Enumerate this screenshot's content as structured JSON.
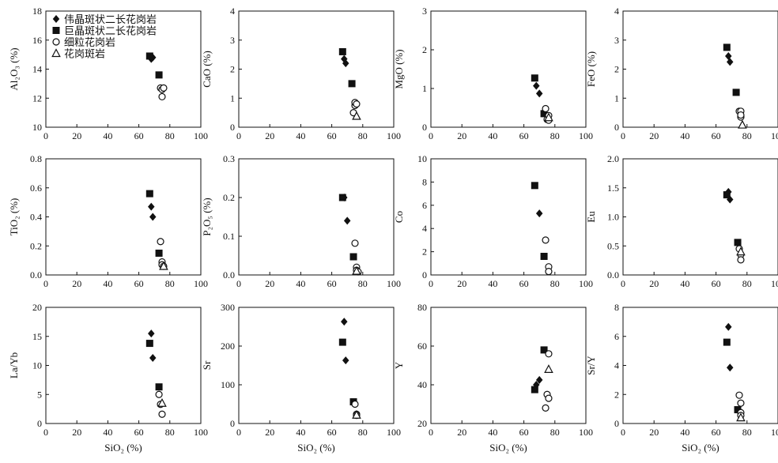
{
  "legend": [
    {
      "label": "伟晶斑状二长花岗岩",
      "marker": "diamond"
    },
    {
      "label": "巨晶斑状二长花岗岩",
      "marker": "square"
    },
    {
      "label": "细粒花岗岩",
      "marker": "circle"
    },
    {
      "label": "花岗斑岩",
      "marker": "triangle"
    }
  ],
  "marker_color": "#111111",
  "chart_data": [
    {
      "type": "scatter",
      "ylabel": "Al₂O₃ (%)",
      "xlabel": "",
      "xlim": [
        0,
        100
      ],
      "ylim": [
        10,
        18
      ],
      "xticks": [
        "0",
        "20",
        "40",
        "60",
        "80",
        "100"
      ],
      "yticks": [
        "10",
        "12",
        "14",
        "16",
        "18"
      ],
      "series": [
        {
          "marker": "diamond",
          "points": [
            [
              68,
              14.7
            ],
            [
              69,
              14.8
            ]
          ]
        },
        {
          "marker": "square",
          "points": [
            [
              67,
              14.9
            ],
            [
              73,
              13.6
            ]
          ]
        },
        {
          "marker": "circle",
          "points": [
            [
              74,
              12.7
            ],
            [
              75,
              12.6
            ],
            [
              75,
              12.1
            ],
            [
              76,
              12.7
            ]
          ]
        },
        {
          "marker": "triangle",
          "points": []
        }
      ]
    },
    {
      "type": "scatter",
      "ylabel": "CaO (%)",
      "xlabel": "",
      "xlim": [
        0,
        100
      ],
      "ylim": [
        0,
        4
      ],
      "xticks": [
        "0",
        "20",
        "40",
        "60",
        "80",
        "100"
      ],
      "yticks": [
        "0",
        "1",
        "2",
        "3",
        "4"
      ],
      "series": [
        {
          "marker": "diamond",
          "points": [
            [
              68,
              2.35
            ],
            [
              69,
              2.2
            ]
          ]
        },
        {
          "marker": "square",
          "points": [
            [
              67,
              2.6
            ],
            [
              73,
              1.5
            ]
          ]
        },
        {
          "marker": "circle",
          "points": [
            [
              74,
              0.5
            ],
            [
              75,
              0.75
            ],
            [
              75,
              0.85
            ],
            [
              76,
              0.8
            ]
          ]
        },
        {
          "marker": "triangle",
          "points": [
            [
              76,
              0.38
            ]
          ]
        }
      ]
    },
    {
      "type": "scatter",
      "ylabel": "MgO (%)",
      "xlabel": "",
      "xlim": [
        0,
        100
      ],
      "ylim": [
        0,
        3
      ],
      "xticks": [
        "0",
        "20",
        "40",
        "60",
        "80",
        "100"
      ],
      "yticks": [
        "0",
        "1",
        "2",
        "3"
      ],
      "series": [
        {
          "marker": "diamond",
          "points": [
            [
              68,
              1.07
            ],
            [
              70,
              0.87
            ]
          ]
        },
        {
          "marker": "square",
          "points": [
            [
              67,
              1.27
            ],
            [
              73,
              0.35
            ]
          ]
        },
        {
          "marker": "circle",
          "points": [
            [
              74,
              0.48
            ],
            [
              75,
              0.2
            ],
            [
              76,
              0.18
            ],
            [
              76,
              0.3
            ]
          ]
        },
        {
          "marker": "triangle",
          "points": [
            [
              76,
              0.25
            ]
          ]
        }
      ]
    },
    {
      "type": "scatter",
      "ylabel": "FeO (%)",
      "xlabel": "",
      "xlim": [
        0,
        100
      ],
      "ylim": [
        0,
        4
      ],
      "xticks": [
        "0",
        "20",
        "40",
        "60",
        "80",
        "100"
      ],
      "yticks": [
        "0",
        "1",
        "2",
        "3",
        "4"
      ],
      "series": [
        {
          "marker": "diamond",
          "points": [
            [
              68,
              2.45
            ],
            [
              69,
              2.25
            ]
          ]
        },
        {
          "marker": "square",
          "points": [
            [
              67,
              2.75
            ],
            [
              73,
              1.2
            ]
          ]
        },
        {
          "marker": "circle",
          "points": [
            [
              75,
              0.55
            ],
            [
              76,
              0.55
            ],
            [
              76,
              0.35
            ],
            [
              76,
              0.42
            ]
          ]
        },
        {
          "marker": "triangle",
          "points": [
            [
              77,
              0.08
            ]
          ]
        }
      ]
    },
    {
      "type": "scatter",
      "ylabel": "TiO₂ (%)",
      "xlabel": "",
      "xlim": [
        0,
        100
      ],
      "ylim": [
        0,
        0.8
      ],
      "xticks": [
        "0",
        "20",
        "40",
        "60",
        "80",
        "100"
      ],
      "yticks": [
        "0.0",
        "0.2",
        "0.4",
        "0.6",
        "0.8"
      ],
      "series": [
        {
          "marker": "diamond",
          "points": [
            [
              68,
              0.47
            ],
            [
              69,
              0.4
            ]
          ]
        },
        {
          "marker": "square",
          "points": [
            [
              67,
              0.56
            ],
            [
              73,
              0.15
            ]
          ]
        },
        {
          "marker": "circle",
          "points": [
            [
              74,
              0.23
            ],
            [
              75,
              0.09
            ],
            [
              75,
              0.07
            ],
            [
              76,
              0.06
            ]
          ]
        },
        {
          "marker": "triangle",
          "points": [
            [
              76,
              0.06
            ]
          ]
        }
      ]
    },
    {
      "type": "scatter",
      "ylabel": "P₂O₅ (%)",
      "xlabel": "",
      "xlim": [
        0,
        100
      ],
      "ylim": [
        0,
        0.3
      ],
      "xticks": [
        "0",
        "20",
        "40",
        "60",
        "80",
        "100"
      ],
      "yticks": [
        "0.0",
        "0.1",
        "0.2",
        "0.3"
      ],
      "series": [
        {
          "marker": "diamond",
          "points": [
            [
              68,
              0.2
            ],
            [
              70,
              0.14
            ]
          ]
        },
        {
          "marker": "square",
          "points": [
            [
              67,
              0.2
            ],
            [
              74,
              0.047
            ]
          ]
        },
        {
          "marker": "circle",
          "points": [
            [
              75,
              0.082
            ],
            [
              76,
              0.02
            ],
            [
              76,
              0.012
            ],
            [
              77,
              0.008
            ]
          ]
        },
        {
          "marker": "triangle",
          "points": [
            [
              76,
              0.01
            ]
          ]
        }
      ]
    },
    {
      "type": "scatter",
      "ylabel": "Co",
      "xlabel": "",
      "xlim": [
        0,
        100
      ],
      "ylim": [
        0,
        10
      ],
      "xticks": [
        "0",
        "20",
        "40",
        "60",
        "80",
        "100"
      ],
      "yticks": [
        "0",
        "2",
        "4",
        "6",
        "8",
        "10"
      ],
      "series": [
        {
          "marker": "diamond",
          "points": [
            [
              70,
              5.3
            ]
          ]
        },
        {
          "marker": "square",
          "points": [
            [
              67,
              7.7
            ],
            [
              73,
              1.6
            ]
          ]
        },
        {
          "marker": "circle",
          "points": [
            [
              74,
              3.0
            ],
            [
              76,
              0.7
            ],
            [
              76,
              0.3
            ]
          ]
        },
        {
          "marker": "triangle",
          "points": []
        }
      ]
    },
    {
      "type": "scatter",
      "ylabel": "Eu",
      "xlabel": "",
      "xlim": [
        0,
        100
      ],
      "ylim": [
        0,
        2.0
      ],
      "xticks": [
        "0",
        "20",
        "40",
        "60",
        "80",
        "100"
      ],
      "yticks": [
        "0.0",
        "0.5",
        "1.0",
        "1.5",
        "2.0"
      ],
      "series": [
        {
          "marker": "diamond",
          "points": [
            [
              68,
              1.43
            ],
            [
              69,
              1.3
            ]
          ]
        },
        {
          "marker": "square",
          "points": [
            [
              67,
              1.38
            ],
            [
              74,
              0.56
            ]
          ]
        },
        {
          "marker": "circle",
          "points": [
            [
              75,
              0.45
            ],
            [
              76,
              0.35
            ],
            [
              76,
              0.26
            ]
          ]
        },
        {
          "marker": "triangle",
          "points": [
            [
              76,
              0.4
            ]
          ]
        }
      ]
    },
    {
      "type": "scatter",
      "ylabel": "La/Yb",
      "xlabel": "SiO₂ (%)",
      "xlim": [
        0,
        100
      ],
      "ylim": [
        0,
        20
      ],
      "xticks": [
        "0",
        "20",
        "40",
        "60",
        "80",
        "100"
      ],
      "yticks": [
        "0",
        "5",
        "10",
        "15",
        "20"
      ],
      "series": [
        {
          "marker": "diamond",
          "points": [
            [
              68,
              15.5
            ],
            [
              69,
              11.3
            ]
          ]
        },
        {
          "marker": "square",
          "points": [
            [
              67,
              13.8
            ],
            [
              73,
              6.3
            ]
          ]
        },
        {
          "marker": "circle",
          "points": [
            [
              73,
              5.0
            ],
            [
              74,
              3.3
            ],
            [
              75,
              1.6
            ]
          ]
        },
        {
          "marker": "triangle",
          "points": [
            [
              75,
              3.5
            ]
          ]
        }
      ]
    },
    {
      "type": "scatter",
      "ylabel": "Sr",
      "xlabel": "SiO₂ (%)",
      "xlim": [
        0,
        100
      ],
      "ylim": [
        0,
        300
      ],
      "xticks": [
        "0",
        "20",
        "40",
        "60",
        "80",
        "100"
      ],
      "yticks": [
        "0",
        "100",
        "200",
        "300"
      ],
      "series": [
        {
          "marker": "diamond",
          "points": [
            [
              68,
              263
            ],
            [
              69,
              163
            ]
          ]
        },
        {
          "marker": "square",
          "points": [
            [
              67,
              210
            ],
            [
              74,
              56
            ]
          ]
        },
        {
          "marker": "circle",
          "points": [
            [
              75,
              50
            ],
            [
              76,
              24
            ],
            [
              76,
              21
            ]
          ]
        },
        {
          "marker": "triangle",
          "points": [
            [
              76,
              22
            ]
          ]
        }
      ]
    },
    {
      "type": "scatter",
      "ylabel": "Y",
      "xlabel": "SiO₂ (%)",
      "xlim": [
        0,
        100
      ],
      "ylim": [
        20,
        80
      ],
      "xticks": [
        "0",
        "20",
        "40",
        "60",
        "80",
        "100"
      ],
      "yticks": [
        "20",
        "40",
        "60",
        "80"
      ],
      "series": [
        {
          "marker": "diamond",
          "points": [
            [
              68,
              40
            ],
            [
              70,
              42.5
            ]
          ]
        },
        {
          "marker": "square",
          "points": [
            [
              67,
              37.5
            ],
            [
              73,
              58
            ]
          ]
        },
        {
          "marker": "circle",
          "points": [
            [
              74,
              28
            ],
            [
              75,
              35
            ],
            [
              76,
              33
            ],
            [
              76,
              56
            ]
          ]
        },
        {
          "marker": "triangle",
          "points": [
            [
              76,
              48
            ]
          ]
        }
      ]
    },
    {
      "type": "scatter",
      "ylabel": "Sr/Y",
      "xlabel": "SiO₂ (%)",
      "xlim": [
        0,
        100
      ],
      "ylim": [
        0,
        8
      ],
      "xticks": [
        "0",
        "20",
        "40",
        "60",
        "80",
        "100"
      ],
      "yticks": [
        "0",
        "2",
        "4",
        "6",
        "8"
      ],
      "series": [
        {
          "marker": "diamond",
          "points": [
            [
              68,
              6.65
            ],
            [
              69,
              3.85
            ]
          ]
        },
        {
          "marker": "square",
          "points": [
            [
              67,
              5.6
            ],
            [
              74,
              0.95
            ]
          ]
        },
        {
          "marker": "circle",
          "points": [
            [
              75,
              1.95
            ],
            [
              76,
              1.4
            ],
            [
              76,
              0.75
            ],
            [
              76,
              0.55
            ]
          ]
        },
        {
          "marker": "triangle",
          "points": [
            [
              76,
              0.4
            ]
          ]
        }
      ]
    }
  ]
}
